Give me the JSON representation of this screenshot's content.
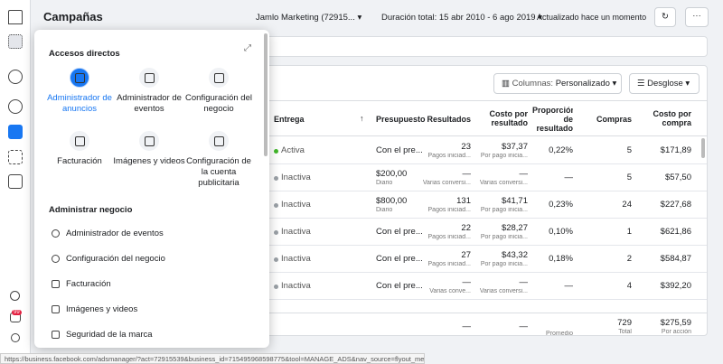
{
  "header": {
    "title": "Campañas",
    "account": "Jamlo Marketing (72915...",
    "date_range": "Duración total: 15 abr 2010 - 6 ago 2019",
    "updated": "Actualizado hace un momento"
  },
  "toolbar": {
    "columns_label": "Columnas:",
    "columns_value": "Personalizado",
    "breakdown": "Desglose"
  },
  "table": {
    "columns": [
      "Entrega",
      "Presupuesto",
      "Resultados",
      "Costo por resultado",
      "Proporción de resultado",
      "Compras",
      "Costo por compra"
    ],
    "rows": [
      {
        "delivery": "Activa",
        "delivery_color": "#42b72a",
        "cells": [
          {
            "text": "Con el pre..."
          },
          {
            "text": "23",
            "sub": "Pagos iniciad..."
          },
          {
            "text": "$37,37",
            "sub": "Por pago inicia..."
          },
          {
            "text": "0,22%"
          },
          {
            "text": "5"
          },
          {
            "text": "$171,89"
          }
        ]
      },
      {
        "delivery": "Inactiva",
        "delivery_color": "#9aa0a6",
        "cells": [
          {
            "text": "$200,00",
            "sub": "Diario"
          },
          {
            "text": "—",
            "sub": "Varias conversi..."
          },
          {
            "text": "—",
            "sub": "Varias conversi..."
          },
          {
            "text": "—"
          },
          {
            "text": "5"
          },
          {
            "text": "$57,50"
          }
        ]
      },
      {
        "delivery": "Inactiva",
        "delivery_color": "#9aa0a6",
        "cells": [
          {
            "text": "$800,00",
            "sub": "Diario"
          },
          {
            "text": "131",
            "sub": "Pagos iniciad..."
          },
          {
            "text": "$41,71",
            "sub": "Por pago inicia..."
          },
          {
            "text": "0,23%"
          },
          {
            "text": "24"
          },
          {
            "text": "$227,68"
          }
        ]
      },
      {
        "delivery": "Inactiva",
        "delivery_color": "#9aa0a6",
        "cells": [
          {
            "text": "Con el pre..."
          },
          {
            "text": "22",
            "sub": "Pagos iniciad..."
          },
          {
            "text": "$28,27",
            "sub": "Por pago inicia..."
          },
          {
            "text": "0,10%"
          },
          {
            "text": "1"
          },
          {
            "text": "$621,86"
          }
        ]
      },
      {
        "delivery": "Inactiva",
        "delivery_color": "#9aa0a6",
        "cells": [
          {
            "text": "Con el pre..."
          },
          {
            "text": "27",
            "sub": "Pagos iniciad..."
          },
          {
            "text": "$43,32",
            "sub": "Por pago inicia..."
          },
          {
            "text": "0,18%"
          },
          {
            "text": "2"
          },
          {
            "text": "$584,87"
          }
        ]
      },
      {
        "delivery": "Inactiva",
        "delivery_color": "#9aa0a6",
        "cells": [
          {
            "text": "Con el pre..."
          },
          {
            "text": "—",
            "sub": "Varias conve..."
          },
          {
            "text": "—",
            "sub": "Varias conversi..."
          },
          {
            "text": "—"
          },
          {
            "text": "4"
          },
          {
            "text": "$392,20"
          }
        ]
      }
    ],
    "summary": [
      {
        "text": "—"
      },
      {
        "text": "—"
      },
      {
        "sub": "Promedio"
      },
      {
        "text": "729",
        "sub": "Total"
      },
      {
        "text": "$275,59",
        "sub": "Por acción"
      }
    ]
  },
  "shortcuts_panel": {
    "title": "Accesos directos",
    "tiles": [
      "Administrador de anuncios",
      "Administrador de eventos",
      "Configuración del negocio",
      "Facturación",
      "Imágenes y videos",
      "Configuración de la cuenta publicitaria"
    ],
    "section_title": "Administrar negocio",
    "items": [
      "Administrador de eventos",
      "Configuración del negocio",
      "Facturación",
      "Imágenes y videos",
      "Seguridad de la marca"
    ]
  },
  "sidebar": {
    "badge": "99"
  },
  "status_url": "https://business.facebook.com/adsmanager/?act=72915539&business_id=715495968598775&tool=MANAGE_ADS&nav_source=flyout_menu"
}
